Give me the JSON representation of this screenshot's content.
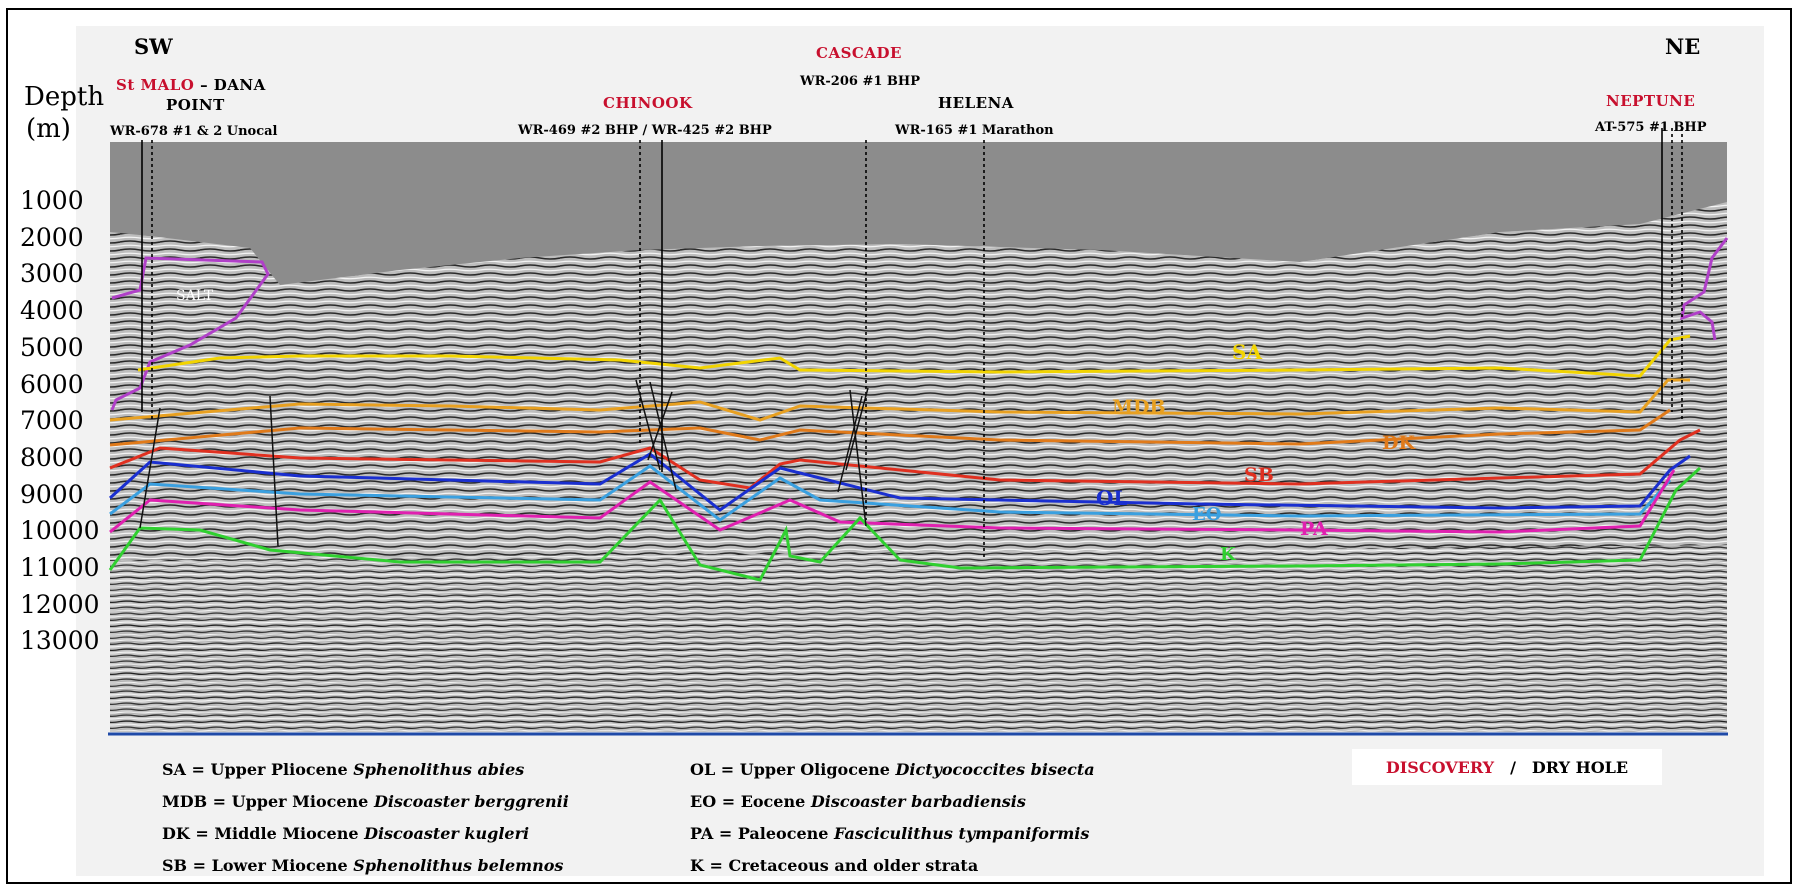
{
  "orientation": {
    "left": "SW",
    "right": "NE"
  },
  "depth_axis": {
    "title_line1": "Depth",
    "title_line2": "(m)",
    "ticks": [
      "1000",
      "2000",
      "3000",
      "4000",
      "5000",
      "6000",
      "7000",
      "8000",
      "9000",
      "10000",
      "11000",
      "12000",
      "13000"
    ]
  },
  "wells": {
    "st_malo": {
      "name": "St MALO",
      "dash": " – DANA",
      "point": "POINT",
      "id": "WR-678 #1 & 2 Unocal"
    },
    "chinook": {
      "name": "CHINOOK",
      "id": "WR-469 #2 BHP / WR-425 #2 BHP"
    },
    "cascade": {
      "name": "CASCADE",
      "id": "WR-206 #1 BHP"
    },
    "helena": {
      "name": "HELENA",
      "id": "WR-165 #1 Marathon"
    },
    "neptune": {
      "name": "NEPTUNE",
      "id": "AT-575 #1 BHP"
    }
  },
  "section_labels": {
    "salt": "SALT",
    "horizons": [
      {
        "code": "SA",
        "color": "#f2d400"
      },
      {
        "code": "MDB",
        "color": "#e8a020"
      },
      {
        "code": "DK",
        "color": "#e07a1a"
      },
      {
        "code": "SB",
        "color": "#e03020"
      },
      {
        "code": "OL",
        "color": "#1a2fd0"
      },
      {
        "code": "EO",
        "color": "#3aa0e0"
      },
      {
        "code": "PA",
        "color": "#e020b0"
      },
      {
        "code": "K",
        "color": "#30d030"
      }
    ],
    "salt_color": "#b040c8"
  },
  "legend": {
    "left": [
      {
        "code": "SA",
        "text": " = Upper Pliocene ",
        "species": "Sphenolithus abies"
      },
      {
        "code": "MDB",
        "text": " = Upper Miocene ",
        "species": "Discoaster berggrenii"
      },
      {
        "code": "DK",
        "text": " = Middle Miocene ",
        "species": "Discoaster kugleri"
      },
      {
        "code": "SB",
        "text": " = Lower Miocene ",
        "species": "Sphenolithus belemnos"
      }
    ],
    "right": [
      {
        "code": "OL",
        "text": " = Upper Oligocene ",
        "species": "Dictyococcites bisecta"
      },
      {
        "code": "EO",
        "text": " = Eocene ",
        "species": "Discoaster barbadiensis"
      },
      {
        "code": "PA",
        "text": " = Paleocene ",
        "species": "Fasciculithus tympaniformis"
      },
      {
        "code": "K",
        "text": " = Cretaceous and older strata",
        "species": ""
      }
    ]
  },
  "well_key": {
    "discovery": "DISCOVERY",
    "separator": "/",
    "dry_hole": "DRY HOLE"
  }
}
